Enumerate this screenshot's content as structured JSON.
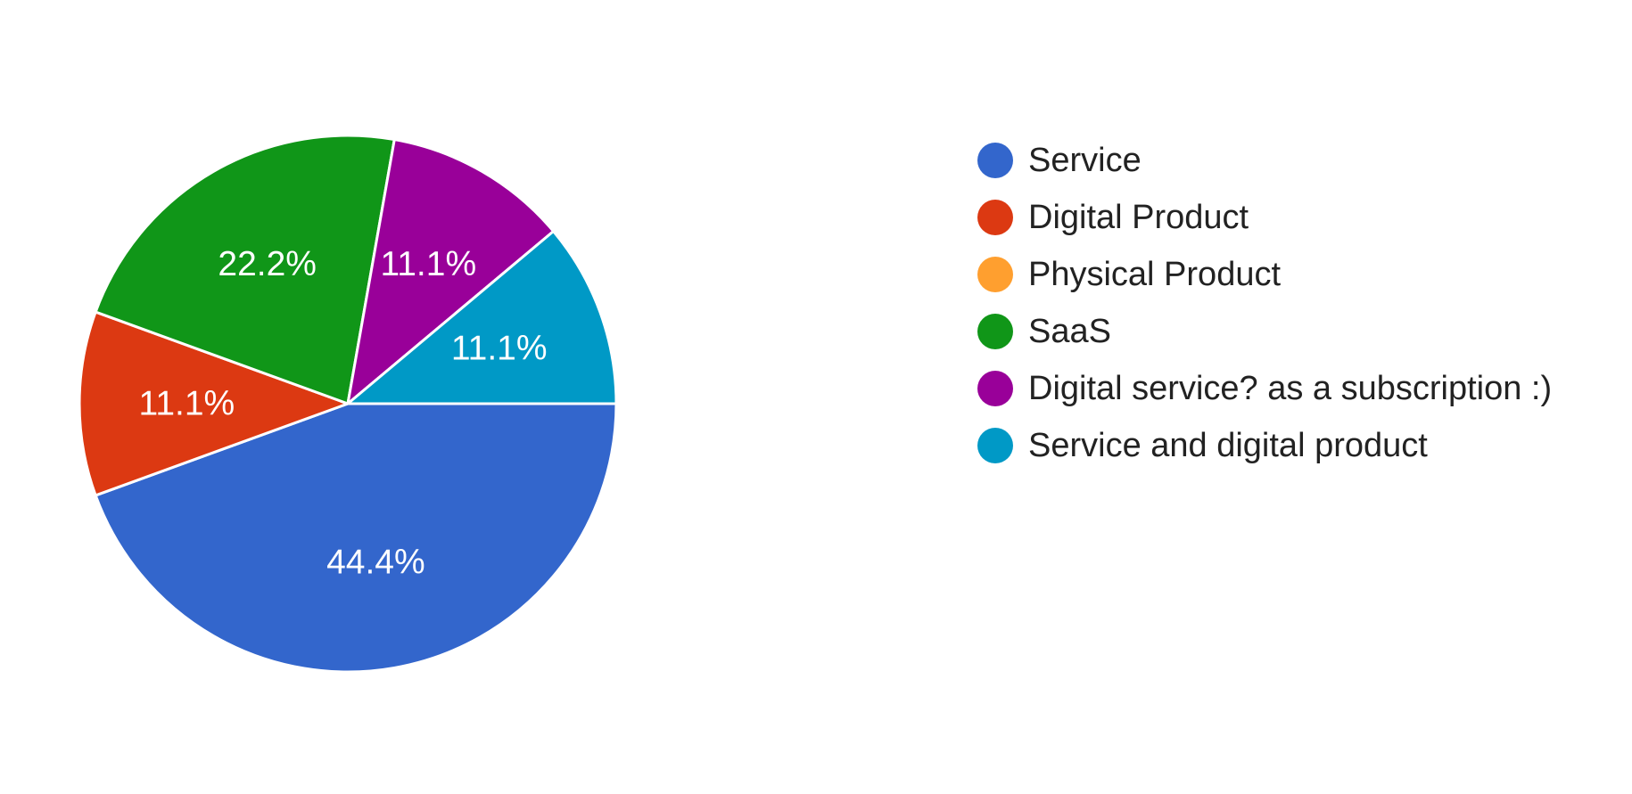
{
  "chart_data": {
    "type": "pie",
    "legend_position": "right",
    "slices": [
      {
        "name": "Service",
        "value": 44.4,
        "label": "44.4%",
        "color": "#3366cc"
      },
      {
        "name": "Digital Product",
        "value": 11.1,
        "label": "11.1%",
        "color": "#dc3912"
      },
      {
        "name": "Physical Product",
        "value": 0,
        "label": "",
        "color": "#ff9f2f"
      },
      {
        "name": "SaaS",
        "value": 22.2,
        "label": "22.2%",
        "color": "#109618"
      },
      {
        "name": "Digital service? as a subscription :)",
        "value": 11.1,
        "label": "11.1%",
        "color": "#990099"
      },
      {
        "name": "Service and digital product",
        "value": 11.1,
        "label": "11.1%",
        "color": "#0099c6"
      }
    ]
  }
}
